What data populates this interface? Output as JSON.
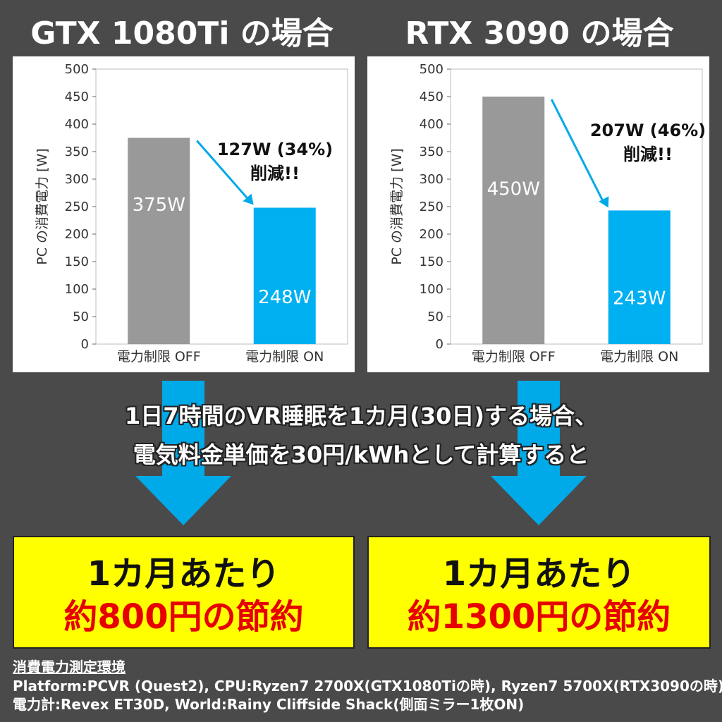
{
  "titles": {
    "left": "GTX 1080Ti の場合",
    "right": "RTX 3090 の場合"
  },
  "chart_data": [
    {
      "type": "bar",
      "categories": [
        "電力制限 OFF",
        "電力制限 ON"
      ],
      "values": [
        375,
        248
      ],
      "data_labels": [
        "375W",
        "248W"
      ],
      "colors": [
        "#999999",
        "#00b0f0"
      ],
      "ylabel": "PC の消費電力 [W]",
      "ylim": [
        0,
        500
      ],
      "yticks": [
        0,
        50,
        100,
        150,
        200,
        250,
        300,
        350,
        400,
        450,
        500
      ],
      "annotation": [
        "127W (34%)",
        "削減!!"
      ]
    },
    {
      "type": "bar",
      "categories": [
        "電力制限 OFF",
        "電力制限 ON"
      ],
      "values": [
        450,
        243
      ],
      "data_labels": [
        "450W",
        "243W"
      ],
      "colors": [
        "#999999",
        "#00b0f0"
      ],
      "ylabel": "PC の消費電力 [W]",
      "ylim": [
        0,
        500
      ],
      "yticks": [
        0,
        50,
        100,
        150,
        200,
        250,
        300,
        350,
        400,
        450,
        500
      ],
      "annotation": [
        "207W (46%)",
        "削減!!"
      ]
    }
  ],
  "middle": {
    "line1": "1日7時間のVR睡眠を1カ月(30日)する場合、",
    "line2": "電気料金単価を30円/kWhとして計算すると"
  },
  "results": {
    "left": {
      "line1": "1カ月あたり",
      "line2": "約800円の節約"
    },
    "right": {
      "line1": "1カ月あたり",
      "line2": "約1300円の節約"
    }
  },
  "footer": {
    "heading": "消費電力測定環境",
    "line1": "Platform:PCVR (Quest2), CPU:Ryzen7 2700X(GTX1080Tiの時), Ryzen7 5700X(RTX3090の時)",
    "line2": "電力計:Revex ET30D, World:Rainy Cliffside Shack(側面ミラー1枚ON)"
  },
  "colors": {
    "background": "#4a4a4a",
    "bar_off": "#999999",
    "bar_on": "#00b0f0",
    "highlight_box": "#ffff00",
    "savings_text": "#e60000"
  }
}
